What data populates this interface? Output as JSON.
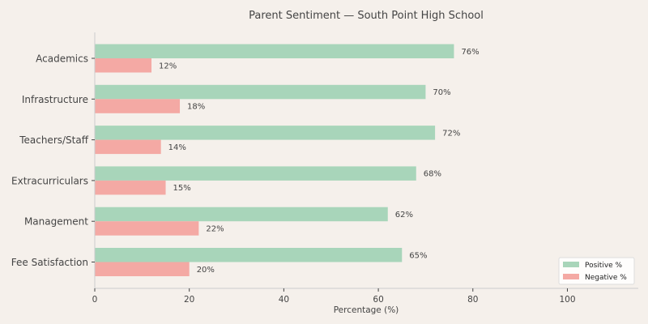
{
  "chart_data": {
    "type": "bar",
    "orientation": "horizontal",
    "title": "Parent Sentiment — South Point High School",
    "xlabel": "Percentage (%)",
    "ylabel": "",
    "xlim": [
      0,
      115
    ],
    "xticks": [
      0,
      20,
      40,
      60,
      80,
      100
    ],
    "grid": false,
    "legend_position": "bottom-right",
    "value_suffix": "%",
    "categories": [
      "Academics",
      "Infrastructure",
      "Teachers/Staff",
      "Extracurriculars",
      "Management",
      "Fee Satisfaction"
    ],
    "series": [
      {
        "name": "Positive %",
        "color": "#a8d5ba",
        "values": [
          76,
          70,
          72,
          68,
          62,
          65
        ]
      },
      {
        "name": "Negative %",
        "color": "#f4a9a4",
        "values": [
          12,
          18,
          14,
          15,
          22,
          20
        ]
      }
    ]
  }
}
